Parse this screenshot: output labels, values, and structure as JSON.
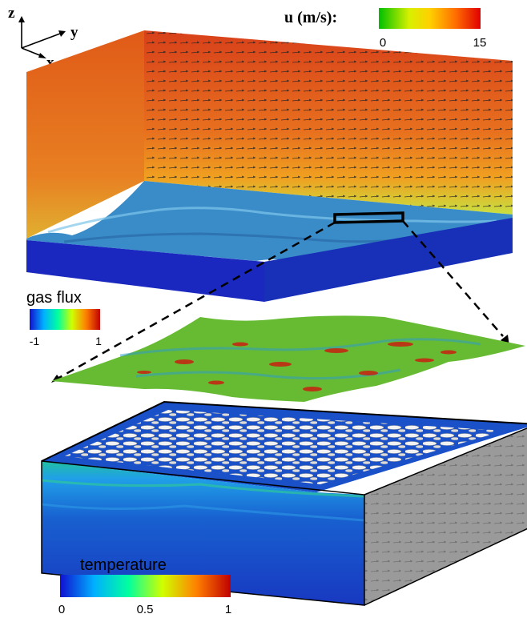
{
  "axes": {
    "z": "z",
    "y": "y",
    "x": "x"
  },
  "velocity_legend": {
    "title": "u (m/s):",
    "min": "0",
    "max": "15",
    "colors": [
      "#00c000",
      "#d8f000",
      "#ffd000",
      "#ff7000",
      "#e00000"
    ]
  },
  "gas_flux_legend": {
    "title": "gas flux",
    "min": "-1",
    "max": "1",
    "colors": [
      "#1010d0",
      "#00b0ff",
      "#00ffa0",
      "#d0ff00",
      "#ff8000",
      "#c00000"
    ]
  },
  "temperature_legend": {
    "title": "temperature",
    "ticks": [
      "0",
      "0.5",
      "1"
    ],
    "colors": [
      "#1010d0",
      "#00b0ff",
      "#00ffa0",
      "#d0ff00",
      "#ff8000",
      "#c00000"
    ]
  },
  "panel_colors": {
    "air_flow": "#e46a18",
    "water_surface": "#3a8cc8",
    "water_body": "#1a28c0",
    "flux_surface": "#66bb33",
    "temp_side": "#1a6ad0",
    "temp_gray": "#9a9a9a",
    "eddies": "#e8e8e8"
  }
}
